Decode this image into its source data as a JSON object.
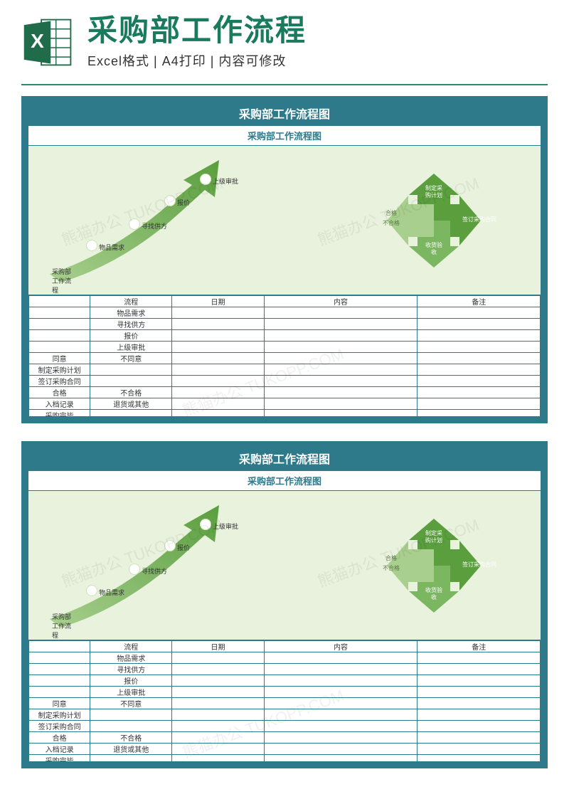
{
  "header": {
    "title": "采购部工作流程",
    "subtitle": "Excel格式 | A4打印 | 内容可修改"
  },
  "sheet": {
    "title": "采购部工作流程图",
    "subtitle": "采购部工作流程图",
    "curve_steps": [
      "采购部\n工作流\n程",
      "物品需求",
      "寻找供方",
      "报价",
      "上级审批"
    ],
    "cross": {
      "up": "制定采\n购计划",
      "right": "签订采购合同",
      "down": "收货验\n收",
      "left_top": "合格",
      "left_bottom": "不合格"
    },
    "table": {
      "headers": [
        "",
        "流程",
        "日期",
        "内容",
        "备注"
      ],
      "rows": [
        [
          "",
          "物品需求",
          "",
          "",
          ""
        ],
        [
          "",
          "寻找供方",
          "",
          "",
          ""
        ],
        [
          "",
          "报价",
          "",
          "",
          ""
        ],
        [
          "",
          "上级审批",
          "",
          "",
          ""
        ],
        [
          "同意",
          "不同意",
          "",
          "",
          ""
        ],
        [
          "制定采购计划",
          "",
          "",
          "",
          ""
        ],
        [
          "签订采购合同",
          "",
          "",
          "",
          ""
        ],
        [
          "合格",
          "不合格",
          "",
          "",
          ""
        ],
        [
          "入档记录",
          "退货或其他",
          "",
          "",
          ""
        ],
        [
          "采购完毕",
          "",
          "",
          "",
          ""
        ]
      ]
    }
  },
  "colors": {
    "border": "#2e7a8a",
    "diagram_bg": "#e8f2dc",
    "arrow_dark": "#5a9e3e",
    "arrow_mid": "#7bb661",
    "arrow_light": "#a8cf8e",
    "title_green": "#1a7a5e"
  }
}
